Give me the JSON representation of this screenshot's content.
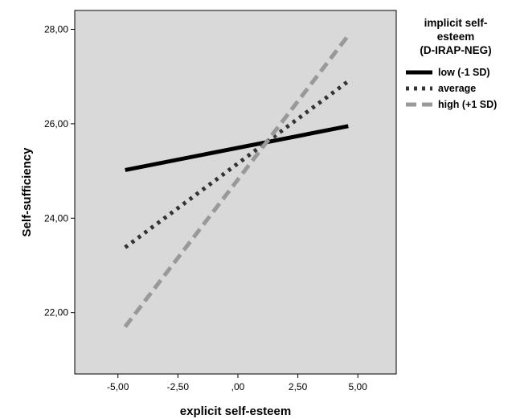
{
  "chart_data": {
    "type": "line",
    "xlabel": "explicit self-esteem",
    "ylabel": "Self-sufficiency",
    "xlim": [
      -6.8,
      6.6
    ],
    "ylim": [
      20.7,
      28.4
    ],
    "x_ticks": [
      -5,
      -2.5,
      0,
      2.5,
      5
    ],
    "x_tick_labels": [
      "-5,00",
      "-2,50",
      ",00",
      "2,50",
      "5,00"
    ],
    "y_ticks": [
      22,
      24,
      26,
      28
    ],
    "y_tick_labels": [
      "22,00",
      "24,00",
      "26,00",
      "28,00"
    ],
    "grid": false,
    "plot_background": "#d9d9d9",
    "legend": {
      "title_lines": [
        "implicit self-",
        "esteem",
        "(D-IRAP-NEG)"
      ],
      "placement": "right"
    },
    "series": [
      {
        "name": "low (-1 SD)",
        "x": [
          -4.7,
          4.6
        ],
        "y": [
          25.02,
          25.95
        ],
        "color": "#000000",
        "dash": "solid"
      },
      {
        "name": "average",
        "x": [
          -4.7,
          4.6
        ],
        "y": [
          23.38,
          26.9
        ],
        "color": "#333333",
        "dash": "dotted"
      },
      {
        "name": "high (+1 SD)",
        "x": [
          -4.7,
          4.6
        ],
        "y": [
          21.7,
          27.87
        ],
        "color": "#999999",
        "dash": "dashed"
      }
    ]
  }
}
